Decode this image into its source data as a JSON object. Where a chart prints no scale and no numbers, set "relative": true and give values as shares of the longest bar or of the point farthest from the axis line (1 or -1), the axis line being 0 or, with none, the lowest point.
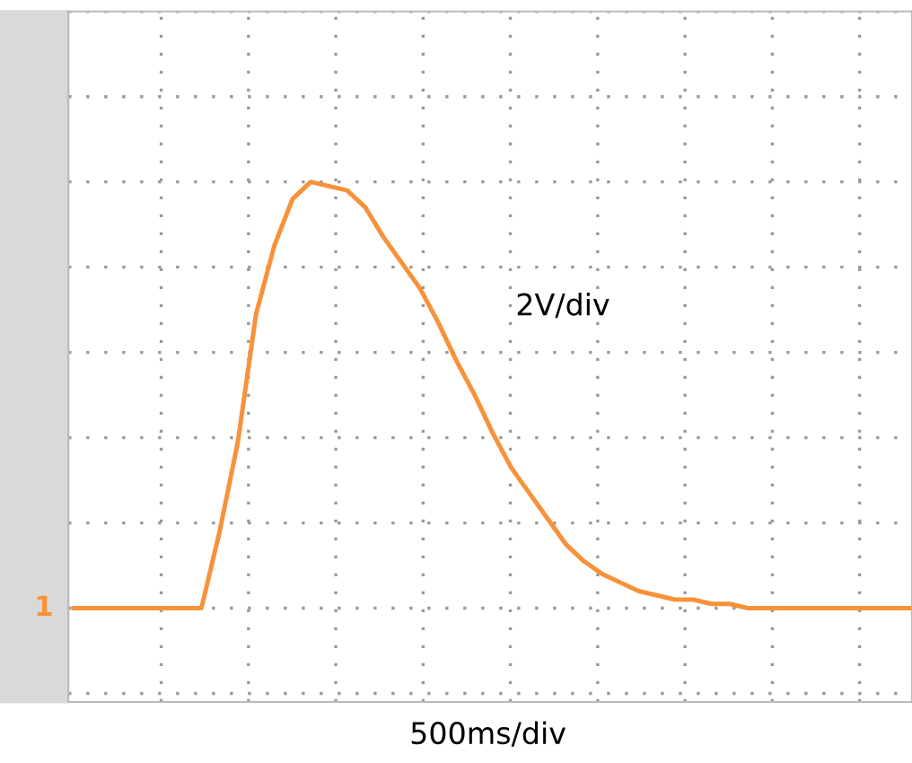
{
  "chart_data": {
    "type": "line",
    "relative": true,
    "grid": true,
    "tick_labels": false,
    "marker": "none",
    "line_style": "solid",
    "categories": [
      null,
      null,
      null,
      null,
      null,
      null,
      null,
      null,
      null,
      null,
      null,
      null,
      null,
      null,
      null,
      null,
      null,
      null,
      null,
      null,
      null,
      null,
      null,
      null,
      null,
      null,
      null,
      null,
      null,
      null,
      null,
      null,
      null,
      null,
      null,
      null,
      null,
      null,
      null,
      null,
      null,
      null,
      null,
      null,
      null,
      null,
      null
    ],
    "series": [
      {
        "color": "#f7923a",
        "values": [
          0,
          0,
          0,
          0,
          0,
          0,
          0,
          0,
          0.18,
          0.39,
          0.69,
          0.85,
          0.96,
          1,
          0.99,
          0.98,
          0.94,
          0.87,
          0.81,
          0.75,
          0.67,
          0.58,
          0.5,
          0.41,
          0.33,
          0.27,
          0.21,
          0.15,
          0.11,
          0.08,
          0.06,
          0.04,
          0.03,
          0.02,
          0.02,
          0.01,
          0.01,
          0,
          0,
          0,
          0,
          0,
          0,
          0,
          0,
          0,
          0
        ]
      }
    ],
    "annotations": [
      "2V/div",
      "500ms/div",
      "1"
    ]
  }
}
